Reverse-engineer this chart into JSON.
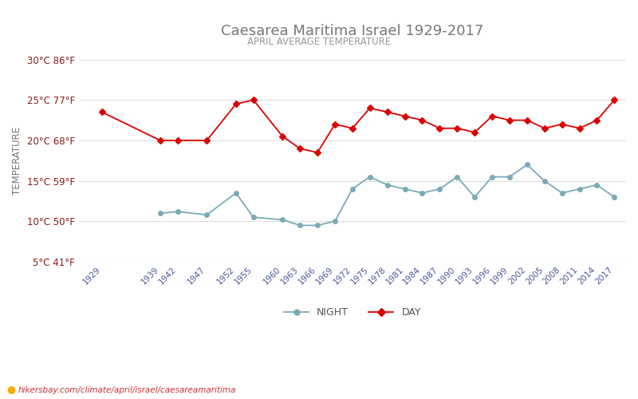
{
  "title": "Caesarea Maritima Israel 1929-2017",
  "subtitle": "APRIL AVERAGE TEMPERATURE",
  "ylabel": "TEMPERATURE",
  "footer": "hikersbay.com/climate/april/israel/caesareamaritima",
  "night_label": "NIGHT",
  "day_label": "DAY",
  "x_ticks": [
    1929,
    1939,
    1942,
    1947,
    1952,
    1955,
    1960,
    1963,
    1966,
    1969,
    1972,
    1975,
    1978,
    1981,
    1984,
    1987,
    1990,
    1993,
    1996,
    1999,
    2002,
    2005,
    2008,
    2011,
    2014,
    2017
  ],
  "day_years": [
    1929,
    1939,
    1942,
    1947,
    1952,
    1955,
    1960,
    1963,
    1966,
    1969,
    1972,
    1975,
    1978,
    1981,
    1984,
    1987,
    1990,
    1993,
    1996,
    1999,
    2002,
    2005,
    2008,
    2011,
    2014,
    2017
  ],
  "day_temps": [
    23.5,
    20.0,
    20.0,
    20.0,
    24.5,
    25.0,
    20.5,
    19.0,
    18.5,
    22.0,
    21.5,
    24.0,
    23.5,
    23.0,
    22.5,
    21.5,
    21.5,
    21.0,
    23.0,
    22.5,
    22.5,
    21.5,
    22.0,
    21.5,
    22.5,
    25.0
  ],
  "night_years": [
    1939,
    1942,
    1947,
    1952,
    1955,
    1960,
    1963,
    1966,
    1969,
    1972,
    1975,
    1978,
    1981,
    1984,
    1987,
    1990,
    1993,
    1996,
    1999,
    2002,
    2005,
    2008,
    2011,
    2014,
    2017
  ],
  "night_temps": [
    11.0,
    11.2,
    10.8,
    13.5,
    10.5,
    10.2,
    9.5,
    9.5,
    10.0,
    14.0,
    15.5,
    14.5,
    14.0,
    13.5,
    14.0,
    15.5,
    13.0,
    15.5,
    15.5,
    17.0,
    15.0,
    13.5,
    14.0,
    14.5,
    13.0
  ],
  "ylim_min": 5,
  "ylim_max": 30,
  "yticks_c": [
    5,
    10,
    15,
    20,
    25,
    30
  ],
  "yticks_f": [
    41,
    50,
    59,
    68,
    77,
    86
  ],
  "title_color": "#777777",
  "subtitle_color": "#999999",
  "ylabel_color": "#777777",
  "ytick_color": "#8B1A1A",
  "xtick_color": "#4a5a9a",
  "grid_color": "#dddddd",
  "day_color": "#dd0000",
  "night_color": "#7aaab8",
  "background_color": "#ffffff",
  "footer_color": "#cc3333",
  "footer_icon_color": "#ffaa00"
}
